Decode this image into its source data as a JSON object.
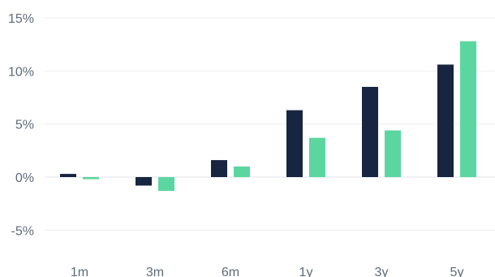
{
  "chart_data": {
    "type": "bar",
    "categories": [
      "1m",
      "3m",
      "6m",
      "1y",
      "3y",
      "5y"
    ],
    "series": [
      {
        "values": [
          0.3,
          -0.8,
          1.6,
          6.3,
          8.5,
          10.6
        ],
        "color": "#172540"
      },
      {
        "values": [
          -0.2,
          -1.3,
          1.0,
          3.7,
          4.4,
          12.8
        ],
        "color": "#5cd6a0"
      }
    ],
    "y_ticks": [
      15,
      10,
      5,
      0,
      -5
    ],
    "y_tick_labels": [
      "15%",
      "10%",
      "5%",
      "0%",
      "-5%"
    ],
    "ylim": [
      -7.5,
      15
    ],
    "grid": true,
    "legend": "none",
    "title": "",
    "xlabel": "",
    "ylabel": ""
  }
}
